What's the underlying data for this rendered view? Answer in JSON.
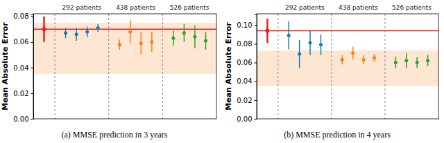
{
  "chart_data": [
    {
      "type": "scatter",
      "title": "(a) MMSE prediction in 3 years",
      "y_label": "Mean Absolute Error",
      "xlim": [
        -1,
        16
      ],
      "ylim": [
        0,
        0.082
      ],
      "yticks": [
        {
          "value": 0,
          "label": "0.00"
        },
        {
          "value": 0.02,
          "label": "0.02"
        },
        {
          "value": 0.04,
          "label": "0.04"
        },
        {
          "value": 0.06,
          "label": "0.06"
        },
        {
          "value": 0.08,
          "label": "0.08"
        }
      ],
      "tick_labels": "y",
      "marker": "circle",
      "shaded_range": [
        0.035,
        0.075
      ],
      "series": [
        {
          "type": "reference",
          "color": "#e8201c",
          "x": [
            0
          ],
          "values": [
            0.07
          ],
          "errors": [
            0.01
          ]
        },
        {
          "name": "292 patients",
          "color": "#1f77b4",
          "x": [
            2,
            3,
            4,
            5
          ],
          "values": [
            0.067,
            0.066,
            0.068,
            0.071
          ],
          "errors": [
            0.004,
            0.005,
            0.004,
            0.003
          ]
        },
        {
          "name": "438 patients",
          "color": "#ff7f0e",
          "x": [
            7,
            8,
            9,
            10
          ],
          "values": [
            0.058,
            0.068,
            0.059,
            0.06
          ],
          "errors": [
            0.004,
            0.009,
            0.009,
            0.008
          ]
        },
        {
          "name": "526 patients",
          "color": "#2ca02c",
          "x": [
            12,
            13,
            14,
            15
          ],
          "values": [
            0.063,
            0.067,
            0.064,
            0.061
          ],
          "errors": [
            0.006,
            0.007,
            0.009,
            0.007
          ]
        }
      ]
    },
    {
      "type": "scatter",
      "title": "(b) MMSE prediction in 4 years",
      "y_label": "Mean Absolute Error",
      "xlim": [
        -1,
        16
      ],
      "ylim": [
        0,
        0.112
      ],
      "yticks": [
        {
          "value": 0,
          "label": "0.00"
        },
        {
          "value": 0.02,
          "label": "0.02"
        },
        {
          "value": 0.04,
          "label": "0.04"
        },
        {
          "value": 0.06,
          "label": "0.06"
        },
        {
          "value": 0.08,
          "label": "0.08"
        },
        {
          "value": 0.1,
          "label": "0.10"
        }
      ],
      "tick_labels": "y",
      "marker": "circle",
      "shaded_range": [
        0.035,
        0.073
      ],
      "series": [
        {
          "type": "reference",
          "color": "#e8201c",
          "x": [
            0
          ],
          "values": [
            0.094
          ],
          "errors": [
            0.013
          ]
        },
        {
          "name": "292 patients",
          "color": "#1f77b4",
          "x": [
            2,
            3,
            4,
            5
          ],
          "values": [
            0.089,
            0.069,
            0.081,
            0.079
          ],
          "errors": [
            0.015,
            0.015,
            0.013,
            0.011
          ]
        },
        {
          "name": "438 patients",
          "color": "#ff7f0e",
          "x": [
            7,
            8,
            9,
            10
          ],
          "values": [
            0.063,
            0.07,
            0.063,
            0.065
          ],
          "errors": [
            0.005,
            0.007,
            0.005,
            0.004
          ]
        },
        {
          "name": "526 patients",
          "color": "#2ca02c",
          "x": [
            12,
            13,
            14,
            15
          ],
          "values": [
            0.06,
            0.062,
            0.06,
            0.062
          ],
          "errors": [
            0.006,
            0.008,
            0.006,
            0.006
          ]
        }
      ]
    }
  ]
}
